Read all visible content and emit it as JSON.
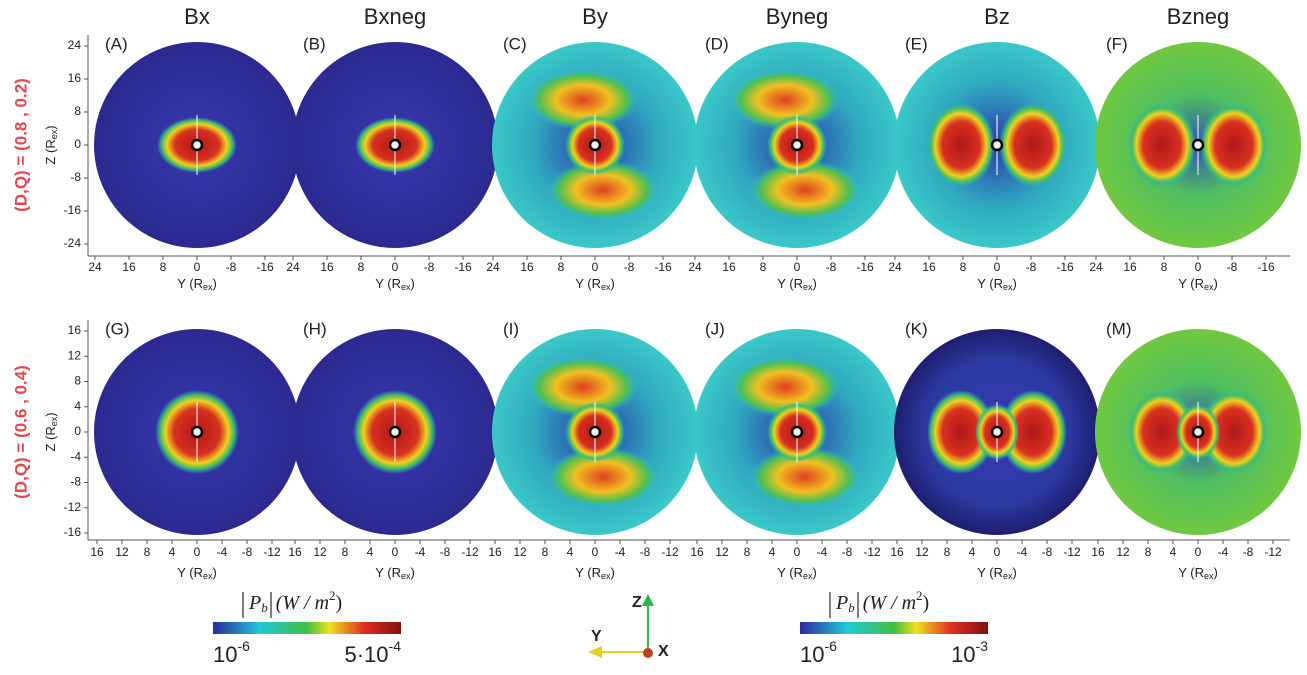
{
  "columns": [
    "Bx",
    "Bxneg",
    "By",
    "Byneg",
    "Bz",
    "Bzneg"
  ],
  "rows": [
    {
      "label": "(D,Q) = (0.8 , 0.2)",
      "panels": [
        "(A)",
        "(B)",
        "(C)",
        "(D)",
        "(E)",
        "(F)"
      ],
      "yticks": [
        24,
        16,
        8,
        0,
        -8,
        -16,
        -24
      ],
      "xticks": [
        24,
        16,
        8,
        0,
        -8,
        -16
      ]
    },
    {
      "label": "(D,Q) = (0.6 , 0.4)",
      "panels": [
        "(G)",
        "(H)",
        "(I)",
        "(J)",
        "(K)",
        "(M)"
      ],
      "yticks": [
        16,
        12,
        8,
        4,
        0,
        -4,
        -8,
        -12,
        -16
      ],
      "xticks": [
        16,
        12,
        8,
        4,
        0,
        -4,
        -8,
        -12
      ]
    }
  ],
  "y_axis_label": {
    "main": "Z (R",
    "sub": "ex",
    "end": ")"
  },
  "x_axis_label": {
    "main": "Y (R",
    "sub": "ex",
    "end": ")"
  },
  "colorbars": [
    {
      "title": {
        "p": "P",
        "sub": "b",
        "unit": "(W / m",
        "sup": "2",
        "close": ")"
      },
      "min": {
        "base": "10",
        "exp": "-6"
      },
      "max": {
        "base": "5·10",
        "exp": "-4"
      }
    },
    {
      "title": {
        "p": "P",
        "sub": "b",
        "unit": "(W / m",
        "sup": "2",
        "close": ")"
      },
      "min": {
        "base": "10",
        "exp": "-6"
      },
      "max": {
        "base": "10",
        "exp": "-3"
      }
    }
  ],
  "triad": {
    "z": "Z",
    "y": "Y",
    "x": "X"
  }
}
